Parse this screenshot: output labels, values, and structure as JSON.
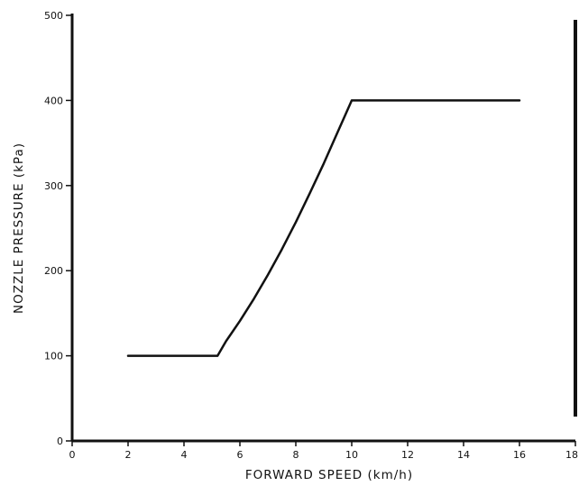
{
  "chart_data": {
    "type": "line",
    "title": "",
    "xlabel": "FORWARD SPEED (km/h)",
    "ylabel": "NOZZLE PRESSURE (kPa)",
    "xlim": [
      0,
      18
    ],
    "ylim": [
      0,
      500
    ],
    "xticks": [
      0,
      2,
      4,
      6,
      8,
      10,
      12,
      14,
      16,
      18
    ],
    "yticks": [
      0,
      100,
      200,
      300,
      400,
      500
    ],
    "grid": false,
    "legend": "none",
    "line_color": "#111111",
    "series": [
      {
        "x": [
          2,
          5.2,
          5.5,
          6,
          6.5,
          7,
          7.5,
          8,
          8.5,
          9,
          9.5,
          10,
          16
        ],
        "y": [
          100,
          100,
          117,
          141,
          167,
          195,
          225,
          257,
          291,
          326,
          363,
          400,
          400
        ]
      }
    ]
  }
}
